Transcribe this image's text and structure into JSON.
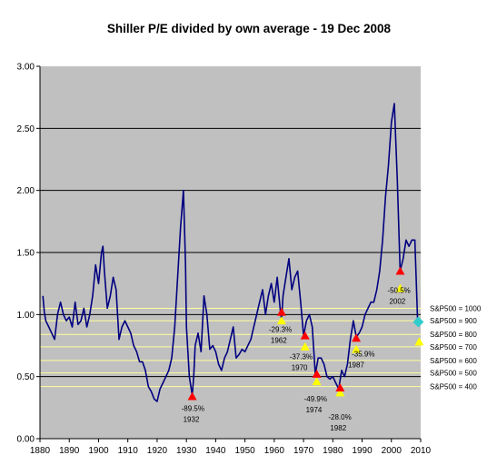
{
  "chart_data": {
    "type": "line",
    "title": "Shiller P/E divided by own average - 19 Dec 2008",
    "xlim": [
      1880,
      2010
    ],
    "ylim": [
      0.0,
      3.0
    ],
    "x_ticks": [
      "1880",
      "1890",
      "1900",
      "1910",
      "1920",
      "1930",
      "1940",
      "1950",
      "1960",
      "1970",
      "1980",
      "1990",
      "2000",
      "2010"
    ],
    "y_ticks": [
      "0.00",
      "0.50",
      "1.00",
      "1.50",
      "2.00",
      "2.50",
      "3.00"
    ],
    "grid": "horizontal",
    "series": [
      {
        "x": [
          1881,
          1881.5,
          1882,
          1883,
          1884,
          1885,
          1886,
          1887,
          1888,
          1889,
          1890,
          1891,
          1892,
          1893,
          1894,
          1895,
          1896,
          1897,
          1898,
          1899,
          1900,
          1901,
          1901.5,
          1902,
          1903,
          1904,
          1905,
          1906,
          1907,
          1908,
          1909,
          1910,
          1911,
          1912,
          1913,
          1914,
          1915,
          1916,
          1917,
          1918,
          1919,
          1920,
          1921,
          1922,
          1923,
          1924,
          1925,
          1926,
          1927,
          1928,
          1929,
          1929.7,
          1930,
          1931,
          1932,
          1932.5,
          1933,
          1934,
          1935,
          1936,
          1937,
          1938,
          1939,
          1940,
          1941,
          1942,
          1943,
          1944,
          1945,
          1946,
          1947,
          1948,
          1949,
          1950,
          1951,
          1952,
          1953,
          1954,
          1955,
          1956,
          1957,
          1958,
          1959,
          1960,
          1961,
          1962,
          1962.5,
          1963,
          1964,
          1965,
          1966,
          1967,
          1968,
          1969,
          1970,
          1971,
          1972,
          1973,
          1974,
          1975,
          1976,
          1977,
          1978,
          1979,
          1980,
          1981,
          1982,
          1983,
          1984,
          1985,
          1986,
          1987,
          1988,
          1989,
          1990,
          1991,
          1992,
          1993,
          1994,
          1995,
          1996,
          1997,
          1998,
          1999,
          2000,
          2001,
          2002,
          2003,
          2004,
          2005,
          2006,
          2007,
          2008,
          2008.97
        ],
        "values": [
          1.15,
          1.02,
          0.95,
          0.9,
          0.85,
          0.8,
          1.0,
          1.1,
          1.0,
          0.95,
          0.98,
          0.9,
          1.1,
          0.92,
          0.95,
          1.05,
          0.9,
          1.0,
          1.15,
          1.4,
          1.25,
          1.5,
          1.55,
          1.35,
          1.05,
          1.15,
          1.3,
          1.2,
          0.8,
          0.9,
          0.95,
          0.9,
          0.85,
          0.75,
          0.7,
          0.62,
          0.62,
          0.55,
          0.42,
          0.38,
          0.32,
          0.3,
          0.4,
          0.45,
          0.5,
          0.55,
          0.65,
          0.9,
          1.3,
          1.7,
          2.0,
          1.4,
          0.9,
          0.5,
          0.35,
          0.5,
          0.75,
          0.85,
          0.7,
          1.15,
          1.0,
          0.72,
          0.75,
          0.7,
          0.6,
          0.55,
          0.65,
          0.7,
          0.8,
          0.9,
          0.65,
          0.68,
          0.72,
          0.7,
          0.75,
          0.8,
          0.9,
          1.0,
          1.1,
          1.2,
          1.0,
          1.15,
          1.25,
          1.1,
          1.3,
          1.05,
          0.95,
          1.15,
          1.3,
          1.45,
          1.2,
          1.3,
          1.35,
          1.1,
          0.83,
          0.95,
          1.0,
          0.9,
          0.52,
          0.65,
          0.65,
          0.6,
          0.5,
          0.48,
          0.5,
          0.45,
          0.4,
          0.55,
          0.5,
          0.6,
          0.8,
          0.95,
          0.82,
          0.85,
          0.9,
          1.0,
          1.05,
          1.1,
          1.1,
          1.2,
          1.35,
          1.6,
          1.95,
          2.2,
          2.55,
          2.7,
          2.1,
          1.35,
          1.45,
          1.6,
          1.55,
          1.6,
          1.6,
          0.93
        ]
      }
    ],
    "crash_markers": [
      {
        "label": "-89.5%",
        "year": "1932",
        "x": 1932,
        "y": 0.34,
        "color": "#ff0000"
      },
      {
        "label": "-29.3%",
        "year": "1962",
        "x": 1962.5,
        "y": 1.02,
        "color": "#ff0000"
      },
      {
        "label": "-37.3%",
        "year": "1970",
        "x": 1970.5,
        "y": 0.83,
        "color": "#ff0000"
      },
      {
        "label": "-49.9%",
        "year": "1974",
        "x": 1974.5,
        "y": 0.52,
        "color": "#ff0000"
      },
      {
        "label": "-28.0%",
        "year": "1982",
        "x": 1982.5,
        "y": 0.41,
        "color": "#ff0000"
      },
      {
        "label": "-35.9%",
        "year": "1987",
        "x": 1988,
        "y": 0.81,
        "color": "#ff0000"
      },
      {
        "label": "-50.5%",
        "year": "2002",
        "x": 2003,
        "y": 1.35,
        "color": "#ff0000"
      }
    ],
    "recovery_markers": [
      {
        "x": 1962.5,
        "y": 0.95
      },
      {
        "x": 1970.5,
        "y": 0.74
      },
      {
        "x": 1974.5,
        "y": 0.46
      },
      {
        "x": 1982.5,
        "y": 0.37
      },
      {
        "x": 1988,
        "y": 0.72
      },
      {
        "x": 2003,
        "y": 1.21
      },
      {
        "x": 2009.5,
        "y": 0.78
      }
    ],
    "current_marker": {
      "x": 2009.2,
      "y": 0.94,
      "color": "#33cccc"
    },
    "sp500_lines": [
      {
        "label": "S&P500 = 1000",
        "y": 1.05
      },
      {
        "label": "S&P500 = 900",
        "y": 0.95
      },
      {
        "label": "S&P500 = 800",
        "y": 0.84
      },
      {
        "label": "S&P500 = 700",
        "y": 0.74
      },
      {
        "label": "S&P500 = 600",
        "y": 0.63
      },
      {
        "label": "S&P500 = 500",
        "y": 0.53
      },
      {
        "label": "S&P500 = 400",
        "y": 0.42
      }
    ],
    "colors": {
      "plot_bg": "#c0c0c0",
      "line": "#000080",
      "sp_line": "#ffff99",
      "grid": "#000000"
    }
  }
}
